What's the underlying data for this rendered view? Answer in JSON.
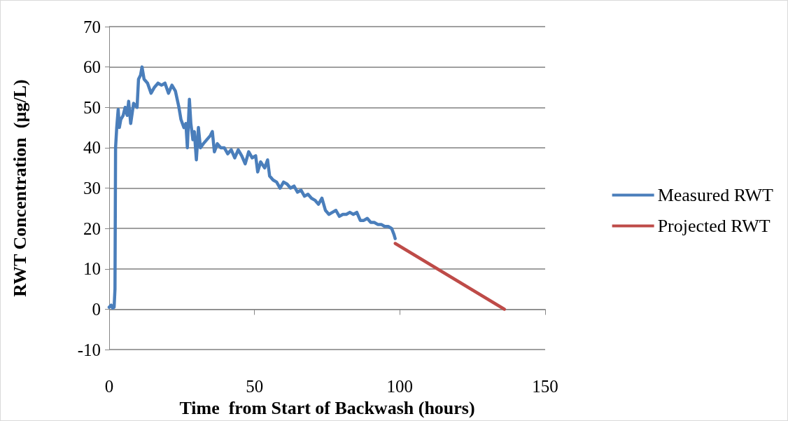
{
  "chart_data": {
    "type": "line",
    "xlabel": "Time  from Start of Backwash (hours)",
    "ylabel": "RWT Concentration  (µg/L)",
    "xlim": [
      0,
      150
    ],
    "xticks": [
      0,
      50,
      100,
      150
    ],
    "ylim": [
      -10,
      70
    ],
    "yticks": [
      -10,
      0,
      10,
      20,
      30,
      40,
      50,
      60,
      70
    ],
    "grid": "y",
    "legend": "right",
    "marker": "none",
    "line_style": "solid",
    "series": [
      {
        "name": "Measured RWT",
        "color": "#4a7ebb",
        "x": [
          0,
          0.7,
          1.2,
          1.7,
          2,
          2.2,
          2.6,
          3.1,
          3.5,
          4,
          4.8,
          5.5,
          6.2,
          6.7,
          7.4,
          8.4,
          9.6,
          10.1,
          10.8,
          11.3,
          12,
          13.2,
          14.4,
          15.6,
          16.8,
          18,
          19.2,
          20.4,
          21.6,
          22.8,
          24,
          24.7,
          25.7,
          26.4,
          26.9,
          27.6,
          28.1,
          28.8,
          29.3,
          30,
          30.7,
          31.4,
          32.4,
          33.6,
          34.8,
          35.5,
          36.2,
          37.2,
          38.4,
          39.6,
          40.8,
          42,
          43.2,
          44.4,
          45.6,
          46.8,
          48,
          49.2,
          50.4,
          51.1,
          52.1,
          53.5,
          54.5,
          55.2,
          56.4,
          57.6,
          58.8,
          60,
          61.2,
          62.4,
          63.6,
          64.8,
          66,
          67.2,
          68.4,
          69.6,
          70.8,
          72,
          73.2,
          74.4,
          75.6,
          76.8,
          78,
          79.2,
          80.4,
          81.6,
          82.8,
          84,
          85.2,
          86.4,
          87.6,
          88.8,
          90,
          91.2,
          92.4,
          93.6,
          94.8,
          96,
          97.2,
          98,
          98.4
        ],
        "values": [
          0.5,
          1,
          0.3,
          0.5,
          5,
          40,
          45,
          49.5,
          45,
          47,
          48,
          50,
          48,
          51.5,
          46,
          51,
          50,
          57,
          58,
          60,
          57,
          56,
          53.5,
          55,
          56,
          55.5,
          56,
          53.5,
          55.5,
          54,
          50,
          47,
          45,
          46,
          40,
          52,
          46,
          42,
          44,
          37,
          45,
          40,
          41,
          42,
          43,
          44,
          39,
          41,
          40,
          40,
          38.5,
          39.5,
          37.5,
          39.5,
          38,
          36,
          39,
          37.5,
          38,
          34,
          36.5,
          35,
          37,
          33,
          32,
          31.5,
          30,
          31.5,
          31,
          30,
          30.5,
          29,
          29.5,
          28,
          28.5,
          27.5,
          27,
          26,
          27.5,
          24.5,
          23.5,
          24,
          24.5,
          23,
          23.5,
          23.5,
          24,
          23.5,
          24,
          22,
          22,
          22.5,
          21.5,
          21.5,
          21,
          21,
          20.5,
          20.5,
          20,
          18.5,
          17.5
        ]
      },
      {
        "name": "Projected RWT",
        "color": "#be4b48",
        "x": [
          98.4,
          136
        ],
        "values": [
          16.3,
          0
        ]
      }
    ]
  }
}
